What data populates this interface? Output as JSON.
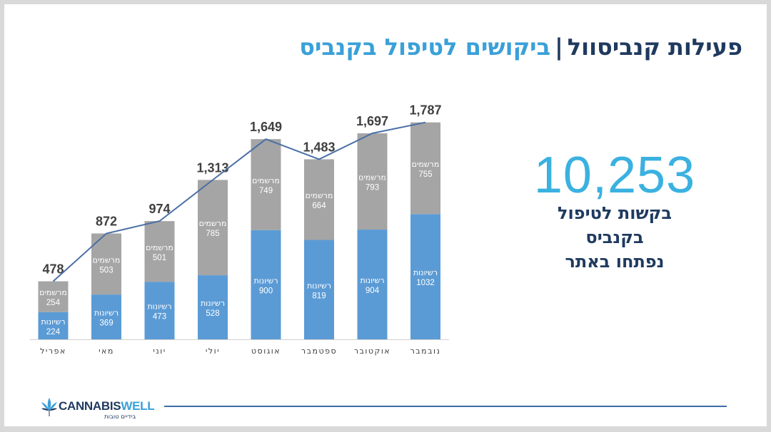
{
  "title": {
    "main": "פעילות קנביסוול",
    "separator": "|",
    "subtitle": "ביקושים לטיפול בקנביס"
  },
  "colors": {
    "licenses": "#5b9bd5",
    "prescribers": "#a5a5a5",
    "total_line": "#4a6fa5",
    "title_dark": "#1f3a5f",
    "accent": "#3aa0d8"
  },
  "chart_data": {
    "type": "bar",
    "stacked": true,
    "categories": [
      "אפריל",
      "מאי",
      "יוני",
      "יולי",
      "אוגוסט",
      "ספטמבר",
      "אוקטובר",
      "נובמבר"
    ],
    "series": [
      {
        "name": "רשיונות",
        "values": [
          224,
          369,
          473,
          528,
          900,
          819,
          904,
          1032
        ]
      },
      {
        "name": "מרשמים",
        "values": [
          254,
          503,
          501,
          785,
          749,
          664,
          793,
          755
        ]
      }
    ],
    "totals": [
      478,
      872,
      974,
      1313,
      1649,
      1483,
      1697,
      1787
    ],
    "totals_labels": [
      "478",
      "872",
      "974",
      "1,313",
      "1,649",
      "1,483",
      "1,697",
      "1,787"
    ],
    "total_line": true,
    "legend": "none",
    "grid": false
  },
  "summary": {
    "number": "10,253",
    "caption_lines": [
      "בקשות לטיפול",
      "בקנביס",
      "נפתחו באתר"
    ]
  },
  "footer": {
    "logo_word_1": "CANNABIS",
    "logo_word_2": "WELL",
    "logo_tagline": "בידיים טובות",
    "logo_icon": "cannabis-leaf-icon"
  }
}
